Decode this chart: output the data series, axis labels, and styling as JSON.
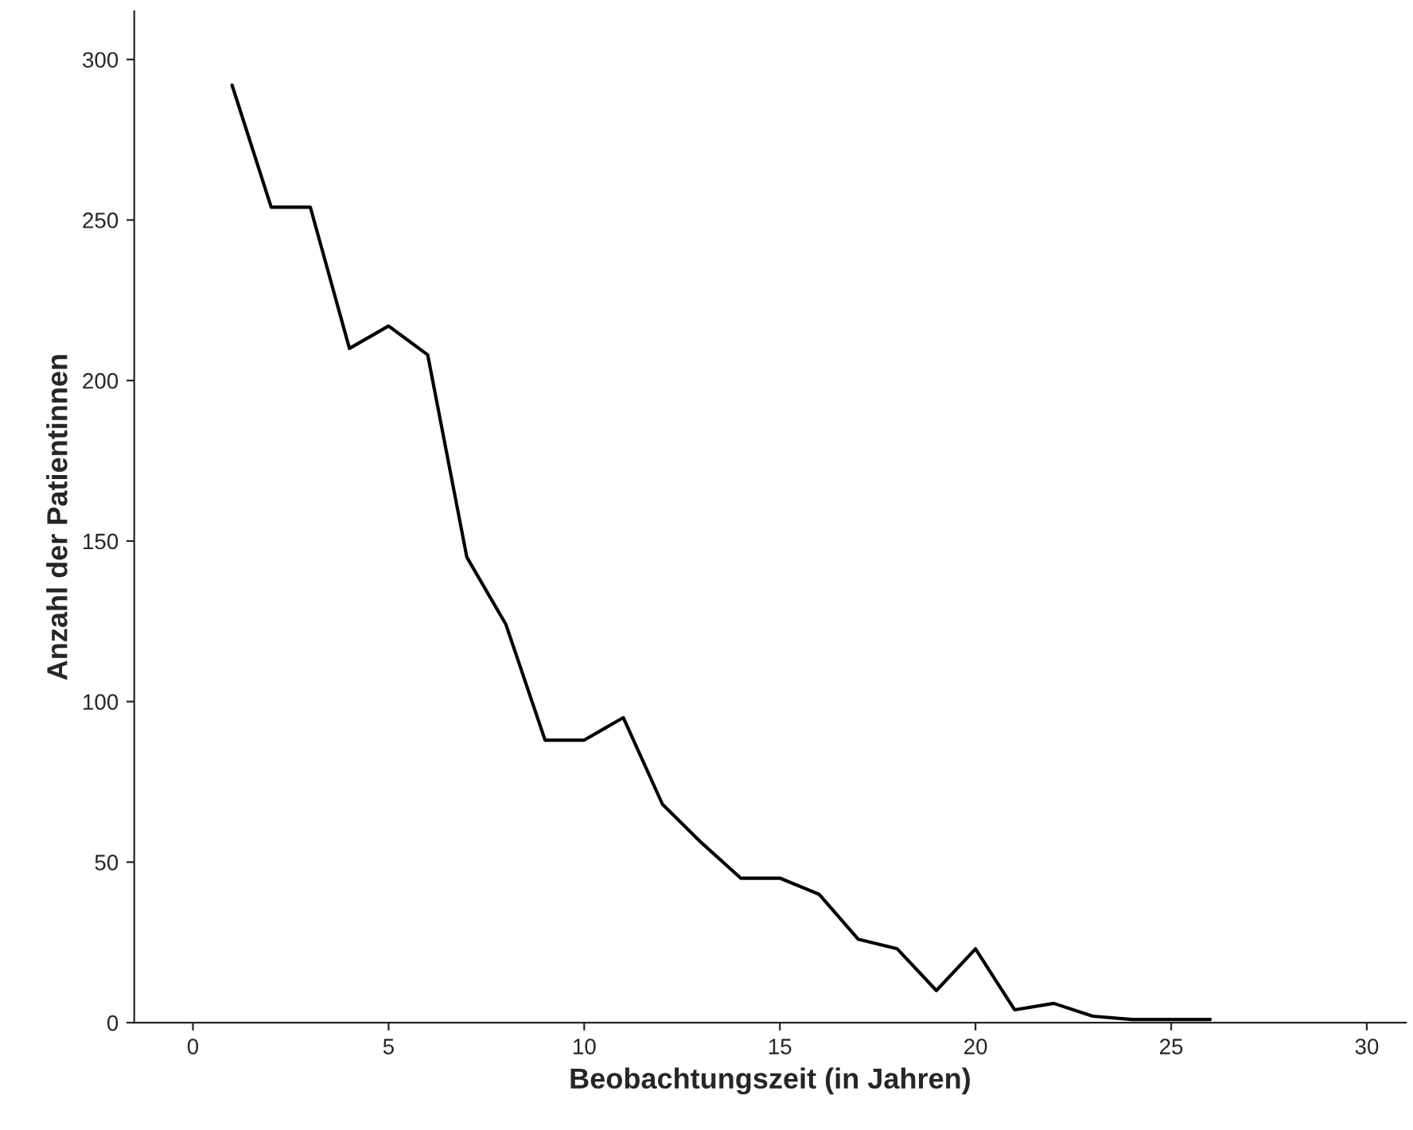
{
  "chart_data": {
    "type": "line",
    "xlabel": "Beobachtungszeit (in Jahren)",
    "ylabel": "Anzahl der Patientinnen",
    "x": [
      1,
      2,
      3,
      4,
      5,
      6,
      7,
      8,
      9,
      10,
      11,
      12,
      13,
      14,
      15,
      16,
      17,
      18,
      19,
      20,
      21,
      22,
      23,
      24,
      25,
      26
    ],
    "series": [
      {
        "color": "#000000",
        "values": [
          292,
          254,
          254,
          210,
          217,
          208,
          145,
          124,
          88,
          88,
          95,
          68,
          56,
          45,
          45,
          40,
          26,
          23,
          10,
          23,
          4,
          6,
          2,
          1,
          1,
          1
        ]
      }
    ],
    "xlim": [
      -1.5,
      31
    ],
    "xticks": [
      0,
      5,
      10,
      15,
      20,
      25,
      30
    ],
    "ylim": [
      0,
      315
    ],
    "yticks": [
      0,
      50,
      100,
      150,
      200,
      250,
      300
    ],
    "grid": false,
    "legend": false,
    "marker": "none",
    "line_style": "solid"
  }
}
